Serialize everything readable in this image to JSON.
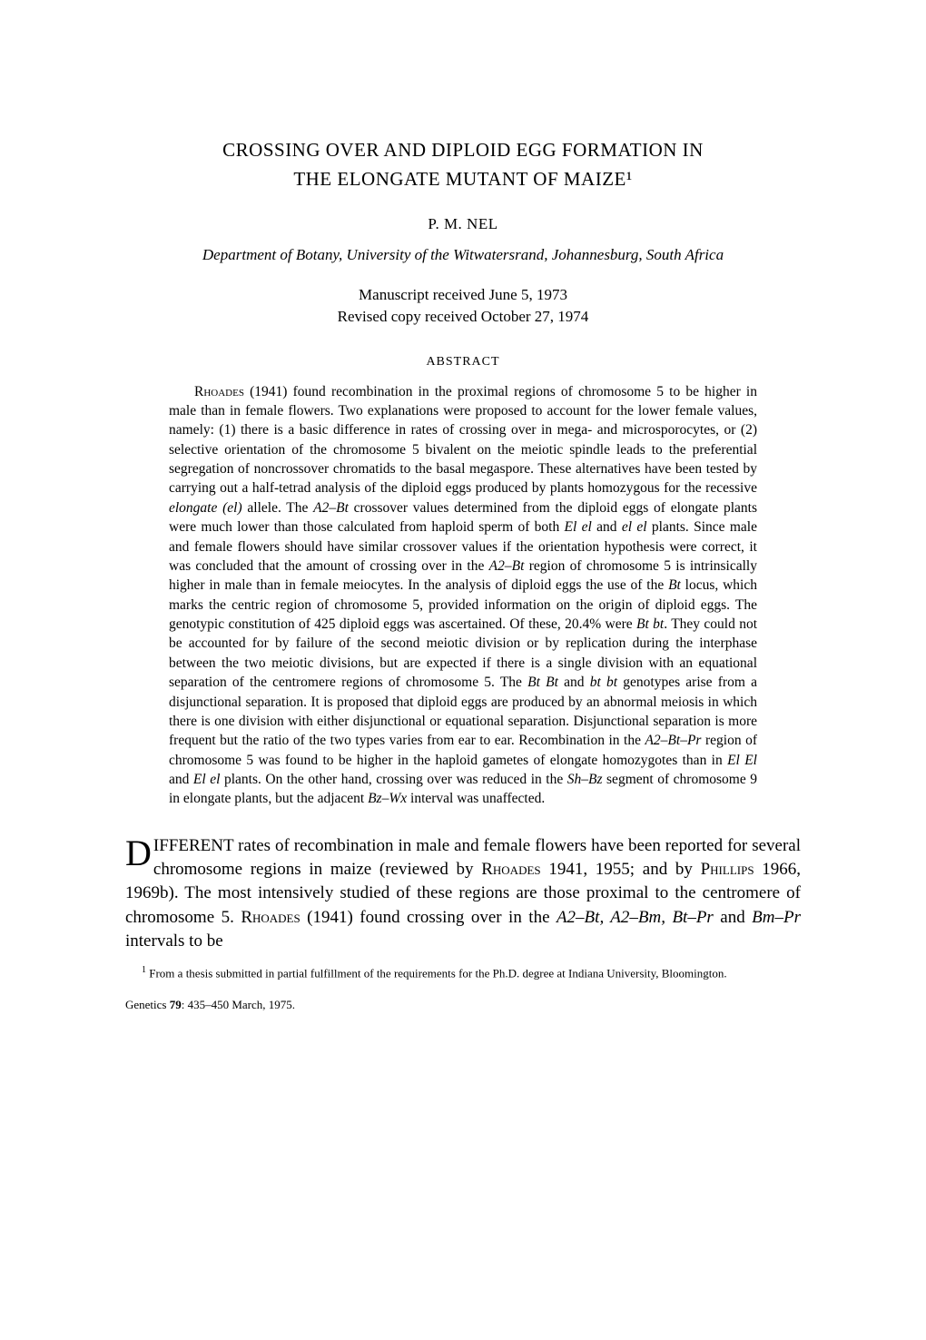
{
  "title_line1": "CROSSING OVER AND DIPLOID EGG FORMATION IN",
  "title_line2": "THE ELONGATE MUTANT OF MAIZE¹",
  "author": "P. M. NEL",
  "affiliation": "Department of Botany, University of the Witwatersrand, Johannesburg, South Africa",
  "received_line1": "Manuscript received June 5, 1973",
  "received_line2": "Revised copy received October 27, 1974",
  "abstract_heading": "ABSTRACT",
  "abstract": {
    "lead_sc": "Rhoades",
    "lead_rest": " (1941) found recombination in the proximal regions of chromosome 5 to be higher in male than in female flowers. Two explanations were proposed to account for the lower female values, namely: (1) there is a basic difference in rates of crossing over in mega- and microsporocytes, or (2) selective orientation of the chromosome 5 bivalent on the meiotic spindle leads to the preferential segregation of noncrossover chromatids to the basal megaspore. These alternatives have been tested by carrying out a half-tetrad analysis of the diploid eggs produced by plants homozygous for the recessive ",
    "it1": "elongate (el)",
    "seg2": " allele. The ",
    "it2": "A2–Bt",
    "seg3": " crossover values determined from the diploid eggs of elongate plants were much lower than those calculated from haploid sperm of both ",
    "it3": "El el",
    "seg4": " and ",
    "it4": "el el",
    "seg5": " plants. Since male and female flowers should have similar crossover values if the orientation hypothesis were correct, it was concluded that the amount of crossing over in the ",
    "it5": "A2–Bt",
    "seg6": " region of chromosome 5 is intrinsically higher in male than in female meiocytes. In the analysis of diploid eggs the use of the ",
    "it6": "Bt",
    "seg7": " locus, which marks the centric region of chromosome 5, provided information on the origin of diploid eggs. The genotypic constitution of 425 diploid eggs was ascertained. Of these, 20.4% were ",
    "it7": "Bt bt",
    "seg8": ". They could not be accounted for by failure of the second meiotic division or by replication during the interphase between the two meiotic divisions, but are expected if there is a single division with an equational separation of the centromere regions of chromosome 5. The ",
    "it8": "Bt Bt",
    "seg9": " and ",
    "it9": "bt bt",
    "seg10": " genotypes arise from a disjunctional separation. It is proposed that diploid eggs are produced by an abnormal meiosis in which there is one division with either disjunctional or equational separation. Disjunctional separation is more frequent but the ratio of the two types varies from ear to ear. Recombination in the ",
    "it10": "A2–Bt–Pr",
    "seg11": " region of chromosome 5 was found to be higher in the haploid gametes of elongate homozygotes than in ",
    "it11": "El El",
    "seg12": " and ",
    "it12": "El el",
    "seg13": " plants. On the other hand, crossing over was reduced in the ",
    "it13": "Sh–Bz",
    "seg14": " segment of chromosome 9 in elongate plants, but the adjacent ",
    "it14": "Bz–Wx",
    "seg15": " interval was unaffected."
  },
  "body": {
    "dropcap": "D",
    "seg1": "IFFERENT rates of recombination in male and female flowers have been reported for several chromosome regions in maize (reviewed by ",
    "sc1": "Rhoades",
    "seg2": " 1941, 1955; and by ",
    "sc2": "Phillips",
    "seg3": " 1966, 1969b). The most intensively studied of these regions are those proximal to the centromere of chromosome 5. ",
    "sc3": "Rhoades",
    "seg4": " (1941) found crossing over in the ",
    "it1": "A2–Bt, A2–Bm, Bt–Pr",
    "seg5": " and ",
    "it2": "Bm–Pr",
    "seg6": " intervals to be"
  },
  "footnote": "From a thesis submitted in partial fulfillment of the requirements for the Ph.D. degree at Indiana University, Bloomington.",
  "journal": {
    "name": "Genetics ",
    "vol": "79",
    "rest": ": 435–450 March, 1975."
  }
}
